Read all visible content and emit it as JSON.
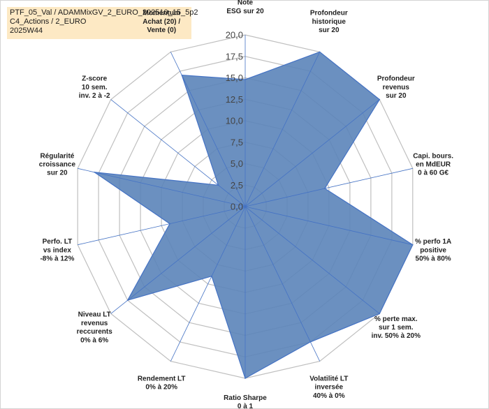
{
  "header": {
    "line1": "PTF_05_Val / ADAMMixGV_2_EURO_202510_15_5p2",
    "line2": "C4_Actions / 2_EURO",
    "line3": "2025W44"
  },
  "chart_data": {
    "type": "radar",
    "title": "",
    "axes": [
      [
        "Note",
        "ESG sur 20"
      ],
      [
        "Profondeur",
        "historique",
        "sur 20"
      ],
      [
        "Profondeur",
        "revenus",
        "sur 20"
      ],
      [
        "Capi. bours.",
        "en MdEUR",
        "0 à 60 G€"
      ],
      [
        "% perfo 1A",
        "positive",
        "50% à 80%"
      ],
      [
        "% perte max.",
        "sur 1 sem.",
        "inv. 50% à 20%"
      ],
      [
        "Volatilité LT",
        "inversée",
        "40% à 0%"
      ],
      [
        "Ratio Sharpe",
        "0 à 1"
      ],
      [
        "Rendement LT",
        "0% à 20%"
      ],
      [
        "Niveau LT",
        "revenus",
        "reccurents",
        "0% à 6%"
      ],
      [
        "Perfo. LT",
        "vs index",
        "-8% à 12%"
      ],
      [
        "Régularité",
        "croissance",
        "sur 20"
      ],
      [
        "Z-score",
        "10 sem.",
        "inv. 2 à -2"
      ],
      [
        "Momentum",
        "Achat (20) /",
        "Vente (0)"
      ]
    ],
    "values": [
      14.8,
      20,
      20,
      9.5,
      20,
      20,
      17.5,
      20,
      9,
      17.5,
      9,
      18,
      4,
      17
    ],
    "rmin": 0,
    "rmax": 20,
    "ticks": [
      0,
      2.5,
      5,
      7.5,
      10,
      12.5,
      15,
      17.5,
      20
    ],
    "tick_labels": [
      "0,0",
      "2,5",
      "5,0",
      "7,5",
      "10,0",
      "12,5",
      "15,0",
      "17,5",
      "20,0"
    ],
    "grid": true,
    "fill_color": "#5b84b9",
    "line_color": "#4472c4",
    "grid_color": "#bfbfbf",
    "spoke_color": "#4472c4"
  }
}
